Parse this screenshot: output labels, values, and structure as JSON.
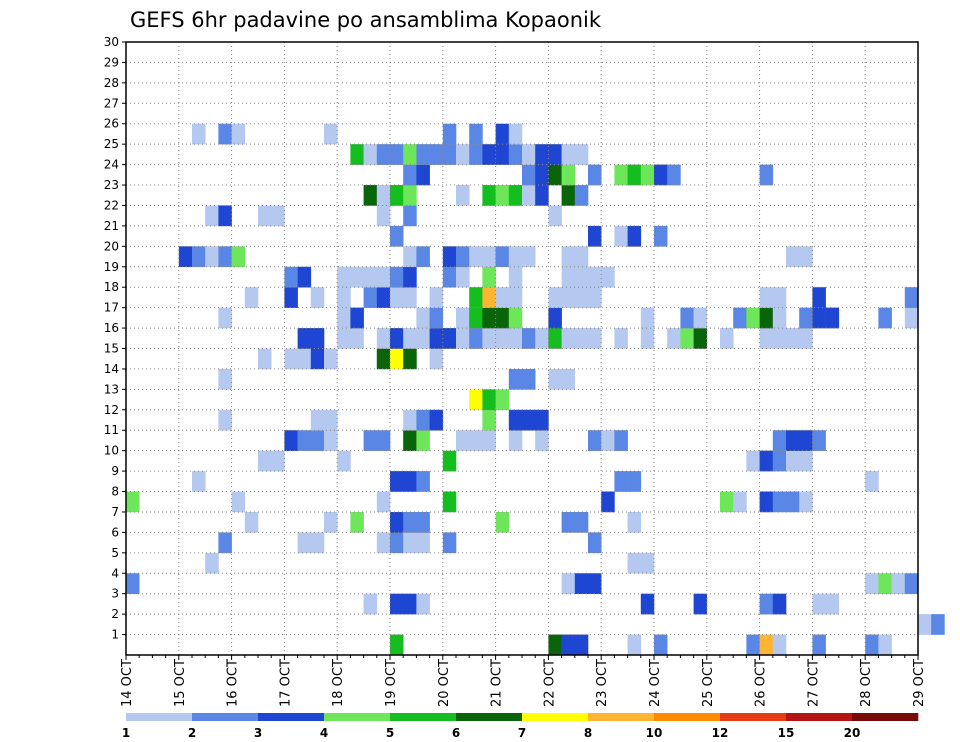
{
  "chart_data": {
    "type": "heatmap",
    "title": "GEFS 6hr padavine po ansamblima Kopaonik",
    "x_ticks": [
      "14 OCT",
      "15 OCT",
      "16 OCT",
      "17 OCT",
      "18 OCT",
      "19 OCT",
      "20 OCT",
      "21 OCT",
      "22 OCT",
      "23 OCT",
      "24 OCT",
      "25 OCT",
      "26 OCT",
      "27 OCT",
      "28 OCT",
      "29 OCT"
    ],
    "x_range": [
      "14 OCT",
      "29 OCT"
    ],
    "x_step_hours": 6,
    "y_ticks": [
      1,
      2,
      3,
      4,
      5,
      6,
      7,
      8,
      9,
      10,
      11,
      12,
      13,
      14,
      15,
      16,
      17,
      18,
      19,
      20,
      21,
      22,
      23,
      24,
      25,
      26,
      27,
      28,
      29,
      30
    ],
    "y_range": [
      0,
      30
    ],
    "grid": true,
    "legend_position": "bottom",
    "legend_labels": [
      "1",
      "2",
      "3",
      "4",
      "5",
      "6",
      "7",
      "8",
      "10",
      "12",
      "15",
      "20"
    ],
    "legend_colors": [
      "#b4c8f0",
      "#5a87e6",
      "#1e46d2",
      "#6ee65a",
      "#14be1e",
      "#0a640a",
      "#ffff00",
      "#ffb432",
      "#ff8c00",
      "#e63c14",
      "#b41414",
      "#780a0a"
    ],
    "cells": [
      [
        1,
        19.0,
        4
      ],
      [
        1,
        22.0,
        5
      ],
      [
        1,
        22.25,
        2
      ],
      [
        1,
        22.5,
        2
      ],
      [
        1,
        23.5,
        0
      ],
      [
        1,
        24.0,
        1
      ],
      [
        1,
        25.75,
        1
      ],
      [
        1,
        26.0,
        7
      ],
      [
        1,
        26.25,
        0
      ],
      [
        1,
        27.0,
        1
      ],
      [
        1,
        28.0,
        1
      ],
      [
        1,
        28.25,
        0
      ],
      [
        2,
        29.0,
        0
      ],
      [
        2,
        29.25,
        1
      ],
      [
        3,
        18.5,
        0
      ],
      [
        3,
        19.0,
        2
      ],
      [
        3,
        19.25,
        2
      ],
      [
        3,
        19.5,
        0
      ],
      [
        3,
        23.75,
        2
      ],
      [
        3,
        24.75,
        2
      ],
      [
        3,
        26.0,
        1
      ],
      [
        3,
        26.25,
        2
      ],
      [
        3,
        27.0,
        0
      ],
      [
        3,
        27.25,
        0
      ],
      [
        4,
        14.0,
        1
      ],
      [
        4,
        22.25,
        0
      ],
      [
        4,
        22.5,
        2
      ],
      [
        4,
        22.75,
        2
      ],
      [
        4,
        28.0,
        0
      ],
      [
        4,
        28.25,
        3
      ],
      [
        4,
        28.5,
        0
      ],
      [
        4,
        28.75,
        1
      ],
      [
        5,
        15.5,
        0
      ],
      [
        5,
        23.5,
        0
      ],
      [
        5,
        23.75,
        0
      ],
      [
        6,
        15.75,
        1
      ],
      [
        6,
        17.25,
        0
      ],
      [
        6,
        17.5,
        0
      ],
      [
        6,
        18.75,
        0
      ],
      [
        6,
        19.0,
        1
      ],
      [
        6,
        19.25,
        0
      ],
      [
        6,
        19.5,
        0
      ],
      [
        6,
        20.0,
        1
      ],
      [
        6,
        22.75,
        1
      ],
      [
        7,
        16.25,
        0
      ],
      [
        7,
        17.75,
        0
      ],
      [
        7,
        18.25,
        3
      ],
      [
        7,
        19.0,
        2
      ],
      [
        7,
        19.25,
        1
      ],
      [
        7,
        19.5,
        1
      ],
      [
        7,
        21.0,
        3
      ],
      [
        7,
        22.25,
        1
      ],
      [
        7,
        22.5,
        1
      ],
      [
        7,
        23.5,
        0
      ],
      [
        8,
        14.0,
        3
      ],
      [
        8,
        16.0,
        0
      ],
      [
        8,
        18.75,
        0
      ],
      [
        8,
        20.0,
        4
      ],
      [
        8,
        23.0,
        2
      ],
      [
        8,
        25.25,
        3
      ],
      [
        8,
        25.5,
        0
      ],
      [
        8,
        26.0,
        2
      ],
      [
        8,
        26.25,
        1
      ],
      [
        8,
        26.5,
        1
      ],
      [
        8,
        26.75,
        0
      ],
      [
        9,
        15.25,
        0
      ],
      [
        9,
        19.0,
        2
      ],
      [
        9,
        19.25,
        2
      ],
      [
        9,
        19.5,
        1
      ],
      [
        9,
        23.25,
        1
      ],
      [
        9,
        23.5,
        1
      ],
      [
        9,
        28.0,
        0
      ],
      [
        10,
        16.5,
        0
      ],
      [
        10,
        16.75,
        0
      ],
      [
        10,
        18.0,
        0
      ],
      [
        10,
        20.0,
        4
      ],
      [
        10,
        25.75,
        0
      ],
      [
        10,
        26.0,
        2
      ],
      [
        10,
        26.25,
        1
      ],
      [
        10,
        26.5,
        0
      ],
      [
        10,
        26.75,
        0
      ],
      [
        11,
        17.0,
        2
      ],
      [
        11,
        17.25,
        1
      ],
      [
        11,
        17.5,
        1
      ],
      [
        11,
        17.75,
        0
      ],
      [
        11,
        18.5,
        1
      ],
      [
        11,
        18.75,
        1
      ],
      [
        11,
        19.25,
        5
      ],
      [
        11,
        19.5,
        3
      ],
      [
        11,
        20.25,
        0
      ],
      [
        11,
        20.5,
        0
      ],
      [
        11,
        20.75,
        0
      ],
      [
        11,
        21.25,
        0
      ],
      [
        11,
        21.75,
        0
      ],
      [
        11,
        22.75,
        1
      ],
      [
        11,
        23.0,
        0
      ],
      [
        11,
        23.25,
        1
      ],
      [
        11,
        26.25,
        1
      ],
      [
        11,
        26.5,
        2
      ],
      [
        11,
        26.75,
        2
      ],
      [
        11,
        27.0,
        1
      ],
      [
        12,
        15.75,
        0
      ],
      [
        12,
        17.5,
        0
      ],
      [
        12,
        17.75,
        0
      ],
      [
        12,
        19.25,
        0
      ],
      [
        12,
        19.5,
        1
      ],
      [
        12,
        19.75,
        2
      ],
      [
        12,
        20.75,
        3
      ],
      [
        12,
        21.25,
        2
      ],
      [
        12,
        21.5,
        2
      ],
      [
        12,
        21.75,
        2
      ],
      [
        13,
        20.5,
        6
      ],
      [
        13,
        20.75,
        4
      ],
      [
        13,
        21.0,
        3
      ],
      [
        14,
        15.75,
        0
      ],
      [
        14,
        21.25,
        1
      ],
      [
        14,
        21.5,
        1
      ],
      [
        14,
        22.0,
        0
      ],
      [
        14,
        22.25,
        0
      ],
      [
        15,
        16.5,
        0
      ],
      [
        15,
        17.0,
        0
      ],
      [
        15,
        17.25,
        0
      ],
      [
        15,
        17.5,
        2
      ],
      [
        15,
        17.75,
        0
      ],
      [
        15,
        18.75,
        5
      ],
      [
        15,
        19.0,
        6
      ],
      [
        15,
        19.25,
        5
      ],
      [
        15,
        19.75,
        0
      ],
      [
        16,
        17.25,
        2
      ],
      [
        16,
        17.5,
        2
      ],
      [
        16,
        18.0,
        0
      ],
      [
        16,
        18.25,
        0
      ],
      [
        16,
        18.75,
        0
      ],
      [
        16,
        19.0,
        2
      ],
      [
        16,
        19.25,
        0
      ],
      [
        16,
        19.5,
        0
      ],
      [
        16,
        19.75,
        2
      ],
      [
        16,
        20.0,
        2
      ],
      [
        16,
        20.25,
        0
      ],
      [
        16,
        20.5,
        1
      ],
      [
        16,
        20.75,
        0
      ],
      [
        16,
        21.0,
        0
      ],
      [
        16,
        21.25,
        0
      ],
      [
        16,
        21.5,
        1
      ],
      [
        16,
        21.75,
        0
      ],
      [
        16,
        22.0,
        4
      ],
      [
        16,
        22.25,
        0
      ],
      [
        16,
        22.5,
        0
      ],
      [
        16,
        22.75,
        0
      ],
      [
        16,
        23.25,
        0
      ],
      [
        16,
        23.75,
        0
      ],
      [
        16,
        24.25,
        0
      ],
      [
        16,
        24.5,
        3
      ],
      [
        16,
        24.75,
        5
      ],
      [
        16,
        25.25,
        0
      ],
      [
        16,
        26.0,
        0
      ],
      [
        16,
        26.25,
        0
      ],
      [
        16,
        26.5,
        0
      ],
      [
        16,
        26.75,
        0
      ],
      [
        17,
        15.75,
        0
      ],
      [
        17,
        18.0,
        0
      ],
      [
        17,
        18.25,
        2
      ],
      [
        17,
        19.5,
        0
      ],
      [
        17,
        19.75,
        1
      ],
      [
        17,
        20.25,
        0
      ],
      [
        17,
        20.5,
        4
      ],
      [
        17,
        20.75,
        5
      ],
      [
        17,
        21.0,
        5
      ],
      [
        17,
        21.25,
        3
      ],
      [
        17,
        22.0,
        2
      ],
      [
        17,
        23.75,
        0
      ],
      [
        17,
        24.5,
        1
      ],
      [
        17,
        24.75,
        0
      ],
      [
        17,
        25.5,
        1
      ],
      [
        17,
        25.75,
        3
      ],
      [
        17,
        26.0,
        5
      ],
      [
        17,
        26.25,
        0
      ],
      [
        17,
        26.75,
        1
      ],
      [
        17,
        27.0,
        2
      ],
      [
        17,
        27.25,
        2
      ],
      [
        17,
        28.25,
        1
      ],
      [
        17,
        28.75,
        0
      ],
      [
        18,
        16.25,
        0
      ],
      [
        18,
        17.0,
        2
      ],
      [
        18,
        17.5,
        0
      ],
      [
        18,
        18.0,
        0
      ],
      [
        18,
        18.5,
        1
      ],
      [
        18,
        18.75,
        2
      ],
      [
        18,
        19.0,
        0
      ],
      [
        18,
        19.25,
        0
      ],
      [
        18,
        19.75,
        0
      ],
      [
        18,
        20.5,
        4
      ],
      [
        18,
        20.75,
        7
      ],
      [
        18,
        21.0,
        0
      ],
      [
        18,
        21.25,
        0
      ],
      [
        18,
        22.0,
        0
      ],
      [
        18,
        22.25,
        0
      ],
      [
        18,
        22.5,
        0
      ],
      [
        18,
        22.75,
        0
      ],
      [
        18,
        26.0,
        0
      ],
      [
        18,
        26.25,
        0
      ],
      [
        18,
        27.0,
        2
      ],
      [
        18,
        28.75,
        1
      ],
      [
        19,
        17.0,
        1
      ],
      [
        19,
        17.25,
        2
      ],
      [
        19,
        18.0,
        0
      ],
      [
        19,
        18.25,
        0
      ],
      [
        19,
        18.5,
        0
      ],
      [
        19,
        18.75,
        0
      ],
      [
        19,
        19.0,
        1
      ],
      [
        19,
        19.25,
        2
      ],
      [
        19,
        20.0,
        1
      ],
      [
        19,
        20.25,
        0
      ],
      [
        19,
        20.75,
        3
      ],
      [
        19,
        21.25,
        0
      ],
      [
        19,
        22.25,
        0
      ],
      [
        19,
        22.5,
        0
      ],
      [
        19,
        22.75,
        0
      ],
      [
        19,
        23.0,
        0
      ],
      [
        20,
        15.0,
        2
      ],
      [
        20,
        15.25,
        1
      ],
      [
        20,
        15.5,
        0
      ],
      [
        20,
        15.75,
        1
      ],
      [
        20,
        16.0,
        3
      ],
      [
        20,
        19.25,
        0
      ],
      [
        20,
        19.5,
        1
      ],
      [
        20,
        20.0,
        2
      ],
      [
        20,
        20.25,
        1
      ],
      [
        20,
        20.5,
        0
      ],
      [
        20,
        20.75,
        0
      ],
      [
        20,
        21.0,
        1
      ],
      [
        20,
        21.25,
        0
      ],
      [
        20,
        21.5,
        0
      ],
      [
        20,
        22.25,
        0
      ],
      [
        20,
        22.5,
        0
      ],
      [
        20,
        26.5,
        0
      ],
      [
        20,
        26.75,
        0
      ],
      [
        21,
        19.0,
        1
      ],
      [
        21,
        22.75,
        2
      ],
      [
        21,
        23.25,
        0
      ],
      [
        21,
        23.5,
        2
      ],
      [
        21,
        24.0,
        1
      ],
      [
        22,
        15.5,
        0
      ],
      [
        22,
        15.75,
        2
      ],
      [
        22,
        16.5,
        0
      ],
      [
        22,
        16.75,
        0
      ],
      [
        22,
        18.75,
        0
      ],
      [
        22,
        19.25,
        1
      ],
      [
        22,
        22.0,
        0
      ],
      [
        23,
        18.5,
        5
      ],
      [
        23,
        18.75,
        0
      ],
      [
        23,
        19.0,
        4
      ],
      [
        23,
        19.25,
        3
      ],
      [
        23,
        20.25,
        0
      ],
      [
        23,
        20.75,
        4
      ],
      [
        23,
        21.0,
        3
      ],
      [
        23,
        21.25,
        4
      ],
      [
        23,
        21.5,
        0
      ],
      [
        23,
        21.75,
        2
      ],
      [
        23,
        22.25,
        5
      ],
      [
        23,
        22.5,
        1
      ],
      [
        24,
        19.25,
        1
      ],
      [
        24,
        19.5,
        2
      ],
      [
        24,
        21.5,
        1
      ],
      [
        24,
        21.75,
        2
      ],
      [
        24,
        22.0,
        5
      ],
      [
        24,
        22.25,
        3
      ],
      [
        24,
        22.75,
        1
      ],
      [
        24,
        23.25,
        3
      ],
      [
        24,
        23.5,
        4
      ],
      [
        24,
        23.75,
        3
      ],
      [
        24,
        24.0,
        2
      ],
      [
        24,
        24.25,
        1
      ],
      [
        24,
        26.0,
        1
      ],
      [
        25,
        18.25,
        4
      ],
      [
        25,
        18.5,
        0
      ],
      [
        25,
        18.75,
        1
      ],
      [
        25,
        19.0,
        1
      ],
      [
        25,
        19.25,
        3
      ],
      [
        25,
        19.5,
        1
      ],
      [
        25,
        19.75,
        1
      ],
      [
        25,
        20.0,
        1
      ],
      [
        25,
        20.25,
        0
      ],
      [
        25,
        20.5,
        1
      ],
      [
        25,
        20.75,
        2
      ],
      [
        25,
        21.0,
        2
      ],
      [
        25,
        21.25,
        1
      ],
      [
        25,
        21.5,
        0
      ],
      [
        25,
        21.75,
        2
      ],
      [
        25,
        22.0,
        2
      ],
      [
        25,
        22.25,
        0
      ],
      [
        25,
        22.5,
        0
      ],
      [
        26,
        15.25,
        0
      ],
      [
        26,
        15.75,
        1
      ],
      [
        26,
        16.0,
        0
      ],
      [
        26,
        17.75,
        0
      ],
      [
        26,
        20.0,
        1
      ],
      [
        26,
        20.5,
        1
      ],
      [
        26,
        21.0,
        2
      ],
      [
        26,
        21.25,
        0
      ]
    ]
  }
}
